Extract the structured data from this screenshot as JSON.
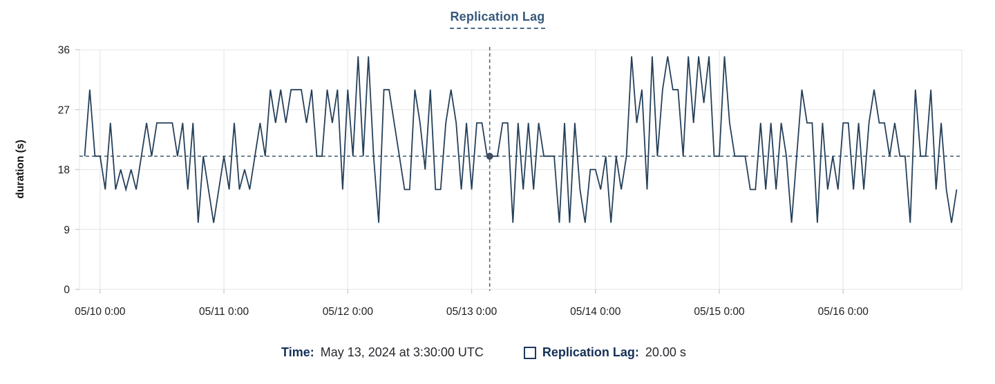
{
  "title": "Replication Lag",
  "tooltip": {
    "time_label": "Time:",
    "time_value": "May 13, 2024 at 3:30:00 UTC",
    "series_label": "Replication Lag:",
    "series_value": "20.00 s"
  },
  "colors": {
    "line": "#25405a",
    "title": "#36597c",
    "legend_label": "#153057",
    "crosshair": "#4c6a78",
    "dot": "#3e4e5e",
    "grid": "#e9e9e9",
    "tick": "#c9c9c9",
    "axis_text": "#1c1c1c"
  },
  "chart_data": {
    "type": "line",
    "title": "Replication Lag",
    "xlabel": "",
    "ylabel": "duration (s)",
    "ylim": [
      0,
      36
    ],
    "yticks": [
      0,
      9,
      18,
      27,
      36
    ],
    "xticks": [
      "05/10 0:00",
      "05/11 0:00",
      "05/12 0:00",
      "05/13 0:00",
      "05/14 0:00",
      "05/15 0:00",
      "05/16 0:00"
    ],
    "xtick_hours": [
      0,
      24,
      48,
      72,
      96,
      120,
      144
    ],
    "x_domain_hours": [
      -4,
      167
    ],
    "grid": true,
    "legend_position": "bottom",
    "sample_interval_hours": 1,
    "x_start_hour": -3,
    "crosshair": {
      "x_hour": 75.5,
      "y_value": 20,
      "time": "May 13, 2024 at 3:30:00 UTC",
      "value_label": "20.00 s"
    },
    "series": [
      {
        "name": "Replication Lag",
        "values": [
          20,
          30,
          20,
          20,
          15,
          25,
          15,
          18,
          15,
          18,
          15,
          20,
          25,
          20,
          25,
          25,
          25,
          25,
          20,
          25,
          15,
          25,
          10,
          20,
          15,
          10,
          15,
          20,
          15,
          25,
          15,
          18,
          15,
          20,
          25,
          20,
          30,
          25,
          30,
          25,
          30,
          30,
          30,
          25,
          30,
          20,
          20,
          30,
          25,
          30,
          15,
          30,
          20,
          35,
          20,
          35,
          20,
          10,
          30,
          30,
          25,
          20,
          15,
          15,
          30,
          25,
          18,
          30,
          15,
          15,
          25,
          30,
          25,
          15,
          25,
          15,
          25,
          25,
          20,
          20,
          20,
          25,
          25,
          10,
          25,
          15,
          25,
          15,
          25,
          20,
          20,
          20,
          10,
          25,
          10,
          25,
          15,
          10,
          18,
          18,
          15,
          20,
          10,
          20,
          15,
          20,
          35,
          25,
          30,
          15,
          35,
          20,
          30,
          35,
          30,
          30,
          20,
          35,
          25,
          35,
          28,
          35,
          20,
          20,
          35,
          25,
          20,
          20,
          20,
          15,
          15,
          25,
          15,
          25,
          15,
          25,
          20,
          10,
          20,
          30,
          25,
          25,
          10,
          25,
          15,
          20,
          15,
          25,
          25,
          15,
          25,
          15,
          25,
          30,
          25,
          25,
          20,
          25,
          20,
          20,
          10,
          30,
          20,
          20,
          30,
          15,
          25,
          15,
          10,
          15
        ]
      }
    ]
  }
}
